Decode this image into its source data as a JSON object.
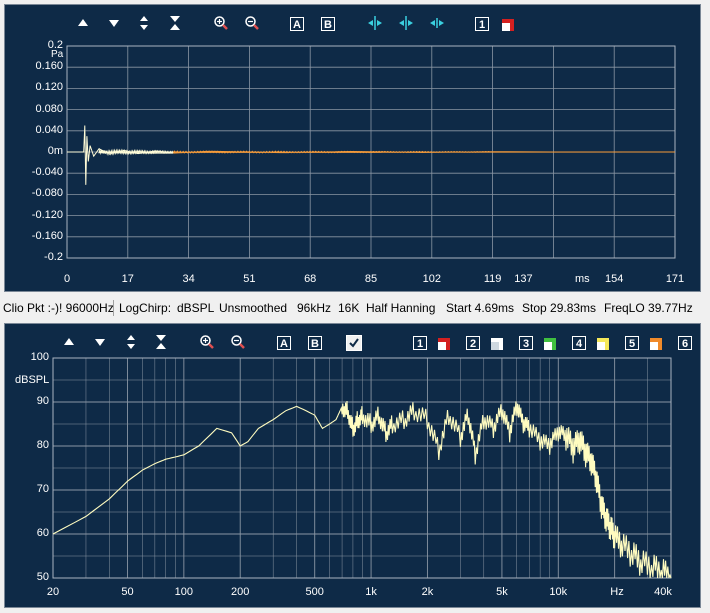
{
  "top_panel": {
    "toolbar": {
      "a_button": "A",
      "b_button": "B",
      "ch1_button": "1"
    },
    "y_unit": "Pa",
    "y_ticks": [
      "0.2",
      "0.160",
      "0.120",
      "0.080",
      "0.040",
      "0m",
      "-0.040",
      "-0.080",
      "-0.120",
      "-0.160",
      "-0.2"
    ],
    "x_ticks": [
      "0",
      "17",
      "34",
      "51",
      "68",
      "85",
      "102",
      "119",
      "137",
      "154",
      "171"
    ],
    "x_unit": "ms",
    "colors": {
      "background": "#0e2a47",
      "grid": "#8a96a4",
      "trace_window": "#fffcd8",
      "trace_rest": "#f59b3a"
    }
  },
  "status_bar": {
    "app_state": "Clio Pkt :-)! 96000Hz",
    "stimulus": "LogChirp:",
    "unit": "dBSPL",
    "smoothing": "Unsmoothed",
    "sample_rate": "96kHz",
    "fft_size": "16K",
    "window": "Half Hanning",
    "start": "Start 4.69ms",
    "stop": "Stop 29.83ms",
    "freq_lo": "FreqLO 39.77Hz"
  },
  "bottom_panel": {
    "toolbar": {
      "a_button": "A",
      "b_button": "B",
      "ch_buttons": [
        "1",
        "2",
        "3",
        "4",
        "5",
        "6"
      ],
      "ch_colors": [
        "#d42020",
        "#ffffff",
        "#40c040",
        "#f5e85a",
        "#f08a2a"
      ]
    },
    "y_unit": "dBSPL",
    "y_ticks": [
      "100",
      "90",
      "80",
      "70",
      "60",
      "50"
    ],
    "x_ticks": [
      "20",
      "50",
      "100",
      "200",
      "500",
      "1k",
      "2k",
      "5k",
      "10k",
      "Hz",
      "40k"
    ],
    "colors": {
      "background": "#0e2a47",
      "grid": "#8a96a4",
      "trace": "#fffcc0"
    }
  },
  "chart_data": [
    {
      "type": "line",
      "xlabel": "ms",
      "ylabel": "Pa",
      "xlim": [
        0,
        171
      ],
      "ylim": [
        -0.2,
        0.2
      ],
      "series": [
        {
          "x": [
            0,
            4.69,
            5.0,
            5.3,
            5.6,
            6.0,
            6.5,
            7.5,
            9,
            12,
            16,
            20,
            25,
            29.83,
            40,
            60,
            80,
            100,
            119,
            137,
            154,
            171
          ],
          "y": [
            0,
            0,
            0.05,
            -0.062,
            0.03,
            -0.018,
            0.012,
            -0.008,
            0.006,
            -0.004,
            0.003,
            -0.003,
            0.002,
            -0.002,
            0.0015,
            -0.0012,
            0.001,
            -0.001,
            0.0006,
            0,
            0,
            0
          ]
        }
      ]
    },
    {
      "type": "line",
      "xlabel": "Hz",
      "ylabel": "dBSPL",
      "xscale": "log",
      "xlim": [
        20,
        40000
      ],
      "ylim": [
        50,
        100
      ],
      "series": [
        {
          "x": [
            20,
            30,
            40,
            50,
            60,
            70,
            80,
            90,
            100,
            120,
            150,
            180,
            200,
            220,
            250,
            300,
            350,
            400,
            450,
            500,
            550,
            600,
            650,
            700,
            750,
            800,
            850,
            900,
            1000,
            1100,
            1200,
            1300,
            1500,
            1700,
            2000,
            2300,
            2600,
            3000,
            3300,
            3600,
            4000,
            4500,
            5000,
            5500,
            6000,
            6500,
            7000,
            8000,
            9000,
            10000,
            11000,
            12000,
            13000,
            14000,
            15000,
            16000,
            17000,
            18000,
            19000,
            20000,
            22000,
            25000,
            28000,
            32000,
            36000,
            40000
          ],
          "y": [
            60,
            64,
            68,
            72,
            74.5,
            76,
            77,
            77.5,
            78,
            80,
            84,
            83,
            80,
            81,
            84,
            86,
            88,
            89,
            88,
            87,
            84,
            85,
            86,
            89,
            88,
            84,
            86,
            87,
            85,
            87,
            83,
            85,
            86,
            88,
            86,
            79,
            87,
            82,
            87,
            78,
            86,
            84,
            88,
            83,
            89,
            85,
            84,
            81,
            80,
            83,
            82,
            79,
            81,
            78,
            76,
            72,
            66,
            63,
            61,
            59,
            57,
            55,
            53,
            52,
            51,
            50
          ]
        }
      ]
    }
  ]
}
